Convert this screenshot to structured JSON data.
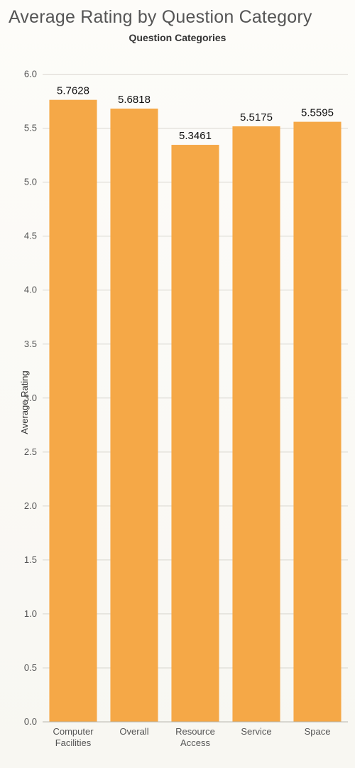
{
  "title": "Average Rating by Question Category",
  "subtitle": "Question Categories",
  "ylabel": "Average Rating",
  "chart": {
    "type": "bar",
    "categories": [
      [
        "Computer",
        "Facilities"
      ],
      [
        "Overall"
      ],
      [
        "Resource",
        "Access"
      ],
      [
        "Service"
      ],
      [
        "Space"
      ]
    ],
    "values": [
      5.7628,
      5.6818,
      5.3461,
      5.5175,
      5.5595
    ],
    "value_labels": [
      "5.7628",
      "5.6818",
      "5.3461",
      "5.5175",
      "5.5595"
    ],
    "bar_color": "#f5a847",
    "background_color": "#fbfaf6",
    "grid_color": "#d8d6cf",
    "ylim": [
      0,
      6.05
    ],
    "yticks": [
      0.0,
      0.5,
      1.0,
      1.5,
      2.0,
      2.5,
      3.0,
      3.5,
      4.0,
      4.5,
      5.0,
      5.5,
      6.0
    ],
    "ytick_labels": [
      "0.0",
      "0.5",
      "1.0",
      "1.5",
      "2.0",
      "2.5",
      "3.0",
      "3.5",
      "4.0",
      "4.5",
      "5.0",
      "5.5",
      "6.0"
    ],
    "axis_fontsize": 13,
    "bar_label_fontsize": 15,
    "title_fontsize": 25,
    "subtitle_fontsize": 14,
    "bar_width_ratio": 0.78
  }
}
